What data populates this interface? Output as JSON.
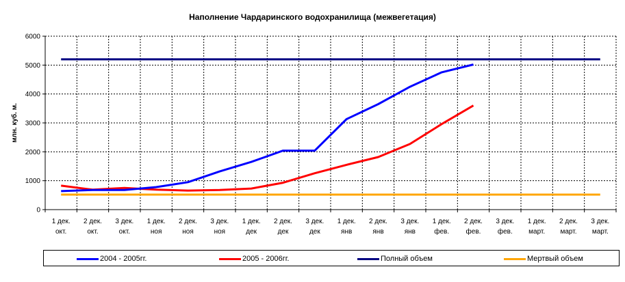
{
  "chart_data": {
    "type": "line",
    "title": "Наполнение Чардаринского водохранилища (межвегетация)",
    "ylabel": "млн. куб. м.",
    "xlabel": "",
    "ylim": [
      0,
      6000
    ],
    "yticks": [
      "0",
      "1000",
      "2000",
      "3000",
      "4000",
      "5000",
      "6000"
    ],
    "grid": true,
    "legend_position": "bottom",
    "categories": [
      [
        "1 дек.",
        "окт."
      ],
      [
        "2 дек.",
        "окт."
      ],
      [
        "3 дек.",
        "окт."
      ],
      [
        "1 дек.",
        "ноя"
      ],
      [
        "2 дек.",
        "ноя"
      ],
      [
        "3 дек.",
        "ноя"
      ],
      [
        "1 дек.",
        "дек"
      ],
      [
        "2 дек.",
        "дек"
      ],
      [
        "3 дек.",
        "дек"
      ],
      [
        "1 дек.",
        "янв"
      ],
      [
        "2 дек.",
        "янв"
      ],
      [
        "3 дек.",
        "янв"
      ],
      [
        "1 дек.",
        "фев."
      ],
      [
        "2 дек.",
        "фев."
      ],
      [
        "3 дек.",
        "фев."
      ],
      [
        "1 дек.",
        "март."
      ],
      [
        "2 дек.",
        "март."
      ],
      [
        "3 дек.",
        "март."
      ]
    ],
    "series": [
      {
        "name": "2004 - 2005гг.",
        "color": "#0000ff",
        "values": [
          640,
          680,
          680,
          780,
          950,
          1320,
          1650,
          2040,
          2040,
          3130,
          3650,
          4250,
          4750,
          5020,
          null,
          null,
          null,
          null
        ]
      },
      {
        "name": "2005 - 2006гг.",
        "color": "#ff0000",
        "values": [
          830,
          690,
          750,
          690,
          660,
          680,
          730,
          930,
          1260,
          1550,
          1820,
          2270,
          2960,
          3600,
          null,
          null,
          null,
          null
        ]
      },
      {
        "name": "Полный объем",
        "color": "#000080",
        "values": [
          5200,
          5200,
          5200,
          5200,
          5200,
          5200,
          5200,
          5200,
          5200,
          5200,
          5200,
          5200,
          5200,
          5200,
          5200,
          5200,
          5200,
          5200
        ]
      },
      {
        "name": "Мертвый объем",
        "color": "#ffa500",
        "values": [
          520,
          520,
          520,
          520,
          520,
          520,
          520,
          520,
          520,
          520,
          520,
          520,
          520,
          520,
          520,
          520,
          520,
          520
        ]
      }
    ]
  }
}
